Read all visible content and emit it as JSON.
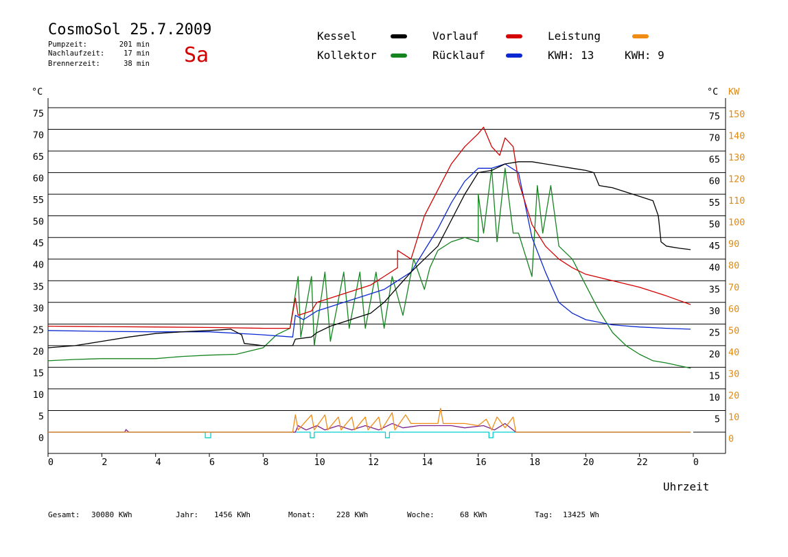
{
  "header": {
    "title": "CosmoSol 25.7.2009",
    "weekday": "Sa",
    "stats": [
      {
        "label": "Pumpzeit:",
        "value": "201 min"
      },
      {
        "label": "Nachlaufzeit:",
        "value": "17 min"
      },
      {
        "label": "Brennerzeit:",
        "value": "38 min"
      }
    ]
  },
  "legend": {
    "kessel": {
      "label": "Kessel",
      "color": "#000000"
    },
    "vorlauf": {
      "label": "Vorlauf",
      "color": "#d40000"
    },
    "leistung": {
      "label": "Leistung",
      "color": "#f08c14"
    },
    "kollektor": {
      "label": "Kollektor",
      "color": "#14841e"
    },
    "ruecklauf": {
      "label": "Rücklauf",
      "color": "#0a28d2"
    },
    "kwh1": "KWH: 13",
    "kwh2": "KWH: 9",
    "kwh1_color": "#e08a10",
    "kwh2_color": "#7a1f8c"
  },
  "axes": {
    "left_unit": "°C",
    "right_unit_c": "°C",
    "right_unit_kw": "KW",
    "x_label": "Uhrzeit",
    "temp_ticks": [
      "0",
      "5",
      "10",
      "15",
      "20",
      "25",
      "30",
      "35",
      "40",
      "45",
      "50",
      "55",
      "60",
      "65",
      "70",
      "75"
    ],
    "kw_ticks": [
      "0",
      "10",
      "20",
      "30",
      "40",
      "50",
      "60",
      "70",
      "80",
      "90",
      "100",
      "110",
      "120",
      "130",
      "140",
      "150"
    ],
    "x_ticks": [
      "0",
      "2",
      "4",
      "6",
      "8",
      "10",
      "12",
      "14",
      "16",
      "18",
      "20",
      "22",
      "0"
    ]
  },
  "footer": [
    {
      "label": "Gesamt:",
      "value": "30080 KWh"
    },
    {
      "label": "Jahr:",
      "value": "1456 KWh"
    },
    {
      "label": "Monat:",
      "value": "228 KWh"
    },
    {
      "label": "Woche:",
      "value": "68 KWh"
    },
    {
      "label": "Tag:",
      "value": "13425 Wh"
    }
  ],
  "chart_data": {
    "type": "line",
    "x_unit": "hour",
    "xlim": [
      0,
      24
    ],
    "ylim": [
      0,
      75
    ],
    "y2lim": [
      0,
      150
    ],
    "grid": true,
    "series": [
      {
        "name": "Kessel",
        "color": "#000000",
        "points": [
          [
            0,
            19.5
          ],
          [
            1,
            20
          ],
          [
            2,
            21
          ],
          [
            3,
            22
          ],
          [
            4,
            22.8
          ],
          [
            5,
            23.2
          ],
          [
            6,
            23.5
          ],
          [
            6.8,
            23.8
          ],
          [
            7.2,
            22.5
          ],
          [
            7.3,
            20.5
          ],
          [
            8,
            20
          ],
          [
            9.1,
            20
          ],
          [
            9.2,
            21.5
          ],
          [
            9.8,
            22
          ],
          [
            10,
            23
          ],
          [
            10.5,
            24.5
          ],
          [
            11,
            25.5
          ],
          [
            11.5,
            26.5
          ],
          [
            12,
            27.5
          ],
          [
            12.5,
            30
          ],
          [
            13,
            33.5
          ],
          [
            13.5,
            37
          ],
          [
            14,
            40
          ],
          [
            14.5,
            43
          ],
          [
            15,
            49
          ],
          [
            15.5,
            55
          ],
          [
            16,
            60
          ],
          [
            16.5,
            60.5
          ],
          [
            17,
            62
          ],
          [
            17.5,
            62.5
          ],
          [
            18,
            62.5
          ],
          [
            18.5,
            62
          ],
          [
            19,
            61.5
          ],
          [
            19.5,
            61
          ],
          [
            20,
            60.5
          ],
          [
            20.3,
            60
          ],
          [
            20.5,
            57
          ],
          [
            21,
            56.5
          ],
          [
            21.5,
            55.5
          ],
          [
            22,
            54.5
          ],
          [
            22.5,
            53.5
          ],
          [
            22.7,
            50
          ],
          [
            22.8,
            44
          ],
          [
            23,
            43
          ],
          [
            23.5,
            42.5
          ],
          [
            23.9,
            42.2
          ]
        ]
      },
      {
        "name": "Vorlauf",
        "color": "#d40000",
        "points": [
          [
            0,
            24.5
          ],
          [
            2,
            24.4
          ],
          [
            4,
            24.3
          ],
          [
            6,
            24.2
          ],
          [
            8,
            24
          ],
          [
            9,
            24
          ],
          [
            9.2,
            31
          ],
          [
            9.3,
            27
          ],
          [
            9.8,
            28
          ],
          [
            10,
            30
          ],
          [
            10.5,
            31
          ],
          [
            11,
            32
          ],
          [
            11.5,
            33
          ],
          [
            12,
            34
          ],
          [
            12.5,
            36
          ],
          [
            13,
            38
          ],
          [
            13,
            42
          ],
          [
            13.5,
            40
          ],
          [
            14,
            50
          ],
          [
            14.5,
            56
          ],
          [
            15,
            62
          ],
          [
            15.5,
            66
          ],
          [
            16,
            69
          ],
          [
            16.2,
            70.5
          ],
          [
            16.5,
            66
          ],
          [
            16.8,
            64
          ],
          [
            17,
            68
          ],
          [
            17.3,
            66
          ],
          [
            17.5,
            58
          ],
          [
            18,
            48
          ],
          [
            18.5,
            43
          ],
          [
            19,
            40
          ],
          [
            19.5,
            38
          ],
          [
            20,
            36.5
          ],
          [
            21,
            35
          ],
          [
            22,
            33.5
          ],
          [
            23,
            31.5
          ],
          [
            23.9,
            29.5
          ]
        ]
      },
      {
        "name": "Rücklauf",
        "color": "#0a28d2",
        "points": [
          [
            0,
            23.5
          ],
          [
            2,
            23.3
          ],
          [
            4,
            23.2
          ],
          [
            6,
            23.2
          ],
          [
            8,
            22.5
          ],
          [
            9.1,
            22
          ],
          [
            9.2,
            27
          ],
          [
            9.5,
            26
          ],
          [
            10,
            28
          ],
          [
            10.5,
            29
          ],
          [
            11,
            30
          ],
          [
            11.5,
            31
          ],
          [
            12,
            32
          ],
          [
            12.5,
            33
          ],
          [
            13,
            35
          ],
          [
            13.5,
            37
          ],
          [
            14,
            42
          ],
          [
            14.5,
            47
          ],
          [
            15,
            53
          ],
          [
            15.5,
            58
          ],
          [
            16,
            61
          ],
          [
            16.5,
            61
          ],
          [
            17,
            62
          ],
          [
            17.5,
            60
          ],
          [
            18,
            45
          ],
          [
            18.5,
            37
          ],
          [
            19,
            30
          ],
          [
            19.5,
            27.5
          ],
          [
            20,
            26
          ],
          [
            21,
            24.8
          ],
          [
            22,
            24.3
          ],
          [
            23,
            24
          ],
          [
            23.9,
            23.8
          ]
        ]
      },
      {
        "name": "Kollektor",
        "color": "#14841e",
        "points": [
          [
            0,
            16.5
          ],
          [
            1,
            16.8
          ],
          [
            2,
            17
          ],
          [
            3,
            17
          ],
          [
            4,
            17
          ],
          [
            5,
            17.5
          ],
          [
            6,
            17.8
          ],
          [
            7,
            18
          ],
          [
            8,
            19.5
          ],
          [
            8.5,
            22.5
          ],
          [
            9,
            24
          ],
          [
            9.3,
            36
          ],
          [
            9.4,
            22
          ],
          [
            9.8,
            36
          ],
          [
            9.9,
            20
          ],
          [
            10.3,
            37
          ],
          [
            10.5,
            21
          ],
          [
            11,
            37
          ],
          [
            11.2,
            24
          ],
          [
            11.6,
            37
          ],
          [
            11.8,
            24
          ],
          [
            12.2,
            37
          ],
          [
            12.5,
            24
          ],
          [
            12.8,
            36
          ],
          [
            13.2,
            27
          ],
          [
            13.6,
            40
          ],
          [
            14,
            33
          ],
          [
            14.2,
            38
          ],
          [
            14.5,
            42
          ],
          [
            15,
            44
          ],
          [
            15.5,
            45
          ],
          [
            16,
            44
          ],
          [
            16,
            55
          ],
          [
            16.2,
            46
          ],
          [
            16.5,
            61
          ],
          [
            16.7,
            44
          ],
          [
            17,
            61
          ],
          [
            17.3,
            46
          ],
          [
            17.5,
            46
          ],
          [
            18,
            36
          ],
          [
            18.2,
            57
          ],
          [
            18.4,
            46
          ],
          [
            18.7,
            57
          ],
          [
            19,
            43
          ],
          [
            19.5,
            40
          ],
          [
            20,
            34
          ],
          [
            20.5,
            28
          ],
          [
            21,
            23
          ],
          [
            21.5,
            20
          ],
          [
            22,
            18
          ],
          [
            22.5,
            16.5
          ],
          [
            23,
            16
          ],
          [
            23.9,
            14.8
          ]
        ]
      },
      {
        "name": "Leistung",
        "color": "#f08c14",
        "axis": "kw",
        "points": [
          [
            0,
            0
          ],
          [
            9.1,
            0
          ],
          [
            9.2,
            8
          ],
          [
            9.3,
            1
          ],
          [
            9.8,
            8
          ],
          [
            9.9,
            1
          ],
          [
            10.3,
            8
          ],
          [
            10.4,
            1
          ],
          [
            10.8,
            7
          ],
          [
            10.9,
            1
          ],
          [
            11.3,
            7
          ],
          [
            11.4,
            1
          ],
          [
            11.8,
            7
          ],
          [
            11.9,
            1
          ],
          [
            12.3,
            7
          ],
          [
            12.4,
            1
          ],
          [
            12.8,
            9
          ],
          [
            12.9,
            1
          ],
          [
            13.3,
            8
          ],
          [
            13.5,
            4
          ],
          [
            14,
            4
          ],
          [
            14.5,
            4
          ],
          [
            14.6,
            11
          ],
          [
            14.7,
            4
          ],
          [
            15.5,
            4
          ],
          [
            16,
            3
          ],
          [
            16.3,
            6
          ],
          [
            16.5,
            1
          ],
          [
            16.7,
            7
          ],
          [
            17,
            2
          ],
          [
            17.3,
            7
          ],
          [
            17.4,
            0
          ],
          [
            23.9,
            0
          ]
        ]
      },
      {
        "name": "Leistung 2",
        "color": "#7a1f8c",
        "axis": "kw",
        "points": [
          [
            0,
            0
          ],
          [
            2.85,
            0
          ],
          [
            2.9,
            1.2
          ],
          [
            3.0,
            0
          ],
          [
            9.2,
            0
          ],
          [
            9.3,
            3
          ],
          [
            9.6,
            1
          ],
          [
            10,
            3
          ],
          [
            10.3,
            1
          ],
          [
            10.8,
            3
          ],
          [
            11.3,
            1
          ],
          [
            11.8,
            3
          ],
          [
            12.3,
            1
          ],
          [
            12.8,
            4
          ],
          [
            13.2,
            2
          ],
          [
            13.8,
            3
          ],
          [
            14.5,
            3
          ],
          [
            15,
            3
          ],
          [
            15.5,
            2
          ],
          [
            16.2,
            3
          ],
          [
            16.6,
            1
          ],
          [
            17,
            4
          ],
          [
            17.4,
            0
          ],
          [
            23.9,
            0
          ]
        ]
      },
      {
        "name": "Pumpe",
        "color": "#00d0d0",
        "points": [
          [
            0,
            0
          ],
          [
            5.85,
            0
          ],
          [
            5.85,
            -1.3
          ],
          [
            6.05,
            -1.3
          ],
          [
            6.05,
            0
          ],
          [
            9.75,
            0
          ],
          [
            9.75,
            -1.3
          ],
          [
            9.9,
            -1.3
          ],
          [
            9.9,
            0
          ],
          [
            12.55,
            0
          ],
          [
            12.55,
            -1.3
          ],
          [
            12.7,
            -1.3
          ],
          [
            12.7,
            0
          ],
          [
            16.4,
            0
          ],
          [
            16.4,
            -1.3
          ],
          [
            16.55,
            -1.3
          ],
          [
            16.55,
            0
          ],
          [
            23.9,
            0
          ]
        ]
      }
    ]
  }
}
